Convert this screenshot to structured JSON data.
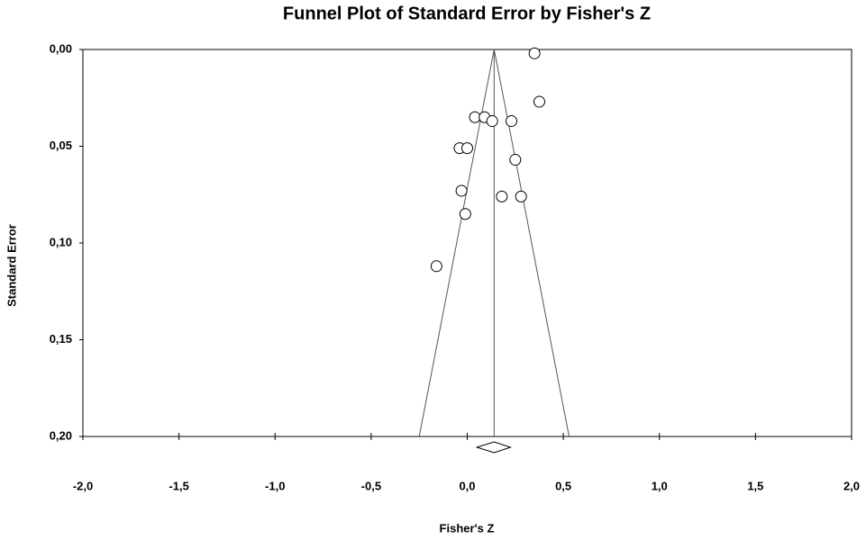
{
  "chart_data": {
    "type": "funnel",
    "title": "Funnel Plot of Standard Error by Fisher's Z",
    "x_label": "Fisher's Z",
    "y_label": "Standard Error",
    "x": [
      0.35,
      0.375,
      0.04,
      0.09,
      0.13,
      0.23,
      -0.04,
      0.0,
      0.25,
      -0.03,
      0.18,
      0.28,
      -0.01,
      -0.16
    ],
    "values": [
      0.002,
      0.027,
      0.035,
      0.035,
      0.037,
      0.037,
      0.051,
      0.051,
      0.057,
      0.073,
      0.076,
      0.076,
      0.085,
      0.112
    ],
    "funnel": {
      "apex": [
        0.14,
        0
      ],
      "left": [
        -0.25,
        0.2
      ],
      "right": [
        0.53,
        0.2
      ]
    },
    "summary": {
      "estimate": 0.14,
      "lower": 0.05,
      "upper": 0.225
    },
    "xlim": [
      -2,
      2
    ],
    "ylim": [
      0.2,
      0
    ],
    "xticks": [
      {
        "value": -2,
        "label": "-2,0"
      },
      {
        "value": -1.5,
        "label": "-1,5"
      },
      {
        "value": -1,
        "label": "-1,0"
      },
      {
        "value": -0.5,
        "label": "-0,5"
      },
      {
        "value": 0,
        "label": "0,0"
      },
      {
        "value": 0.5,
        "label": "0,5"
      },
      {
        "value": 1,
        "label": "1,0"
      },
      {
        "value": 1.5,
        "label": "1,5"
      },
      {
        "value": 2,
        "label": "2,0"
      }
    ],
    "yticks": [
      {
        "value": 0,
        "label": "0,00"
      },
      {
        "value": 0.05,
        "label": "0,05"
      },
      {
        "value": 0.1,
        "label": "0,10"
      },
      {
        "value": 0.15,
        "label": "0,15"
      },
      {
        "value": 0.2,
        "label": "0,20"
      }
    ],
    "color": "#000000"
  }
}
